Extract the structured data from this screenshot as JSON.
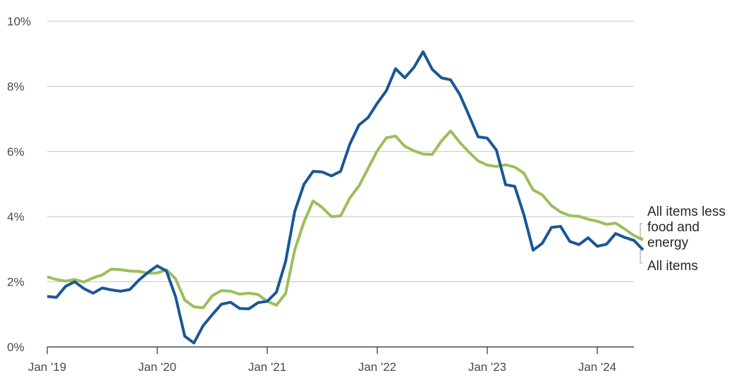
{
  "chart_data": {
    "type": "line",
    "title": "",
    "xlabel": "",
    "ylabel": "",
    "ylim": [
      0,
      10
    ],
    "xlim": [
      "2019-01",
      "2024-05"
    ],
    "y_ticks": [
      0,
      2,
      4,
      6,
      8,
      10
    ],
    "y_tick_labels": [
      "0%",
      "2%",
      "4%",
      "6%",
      "8%",
      "10%"
    ],
    "x_ticks": [
      "2019-01",
      "2020-01",
      "2021-01",
      "2022-01",
      "2023-01",
      "2024-01"
    ],
    "x_tick_labels": [
      "Jan '19",
      "Jan '20",
      "Jan '21",
      "Jan '22",
      "Jan '23",
      "Jan '24"
    ],
    "grid": "horizontal",
    "legend": "direct labels at right end",
    "series": [
      {
        "name": "All items",
        "color": "#1a5796",
        "values": [
          1.55,
          1.52,
          1.86,
          2.0,
          1.79,
          1.65,
          1.81,
          1.75,
          1.71,
          1.76,
          2.05,
          2.29,
          2.49,
          2.33,
          1.54,
          0.33,
          0.12,
          0.65,
          0.99,
          1.31,
          1.37,
          1.18,
          1.17,
          1.36,
          1.4,
          1.68,
          2.62,
          4.16,
          4.99,
          5.39,
          5.37,
          5.25,
          5.39,
          6.22,
          6.81,
          7.04,
          7.48,
          7.87,
          8.54,
          8.26,
          8.58,
          9.06,
          8.52,
          8.26,
          8.2,
          7.75,
          7.11,
          6.45,
          6.41,
          6.04,
          4.98,
          4.93,
          4.05,
          2.97,
          3.18,
          3.67,
          3.7,
          3.24,
          3.14,
          3.35,
          3.09,
          3.15,
          3.48,
          3.36,
          3.27,
          2.98
        ]
      },
      {
        "name": "All items less food and energy",
        "color": "#9bbf5a",
        "values": [
          2.15,
          2.07,
          2.02,
          2.07,
          1.99,
          2.12,
          2.21,
          2.39,
          2.37,
          2.33,
          2.32,
          2.26,
          2.27,
          2.37,
          2.09,
          1.44,
          1.23,
          1.2,
          1.57,
          1.73,
          1.71,
          1.62,
          1.65,
          1.61,
          1.4,
          1.28,
          1.64,
          2.98,
          3.83,
          4.48,
          4.28,
          4.0,
          4.02,
          4.57,
          4.94,
          5.48,
          6.02,
          6.42,
          6.47,
          6.16,
          6.02,
          5.92,
          5.91,
          6.32,
          6.63,
          6.28,
          5.98,
          5.71,
          5.58,
          5.54,
          5.59,
          5.52,
          5.33,
          4.82,
          4.67,
          4.34,
          4.14,
          4.03,
          4.01,
          3.92,
          3.86,
          3.76,
          3.8,
          3.62,
          3.42,
          3.28
        ]
      }
    ]
  },
  "labels": {
    "core_line1": "All items less",
    "core_line2": "food and",
    "core_line3": "energy",
    "headline": "All items"
  }
}
